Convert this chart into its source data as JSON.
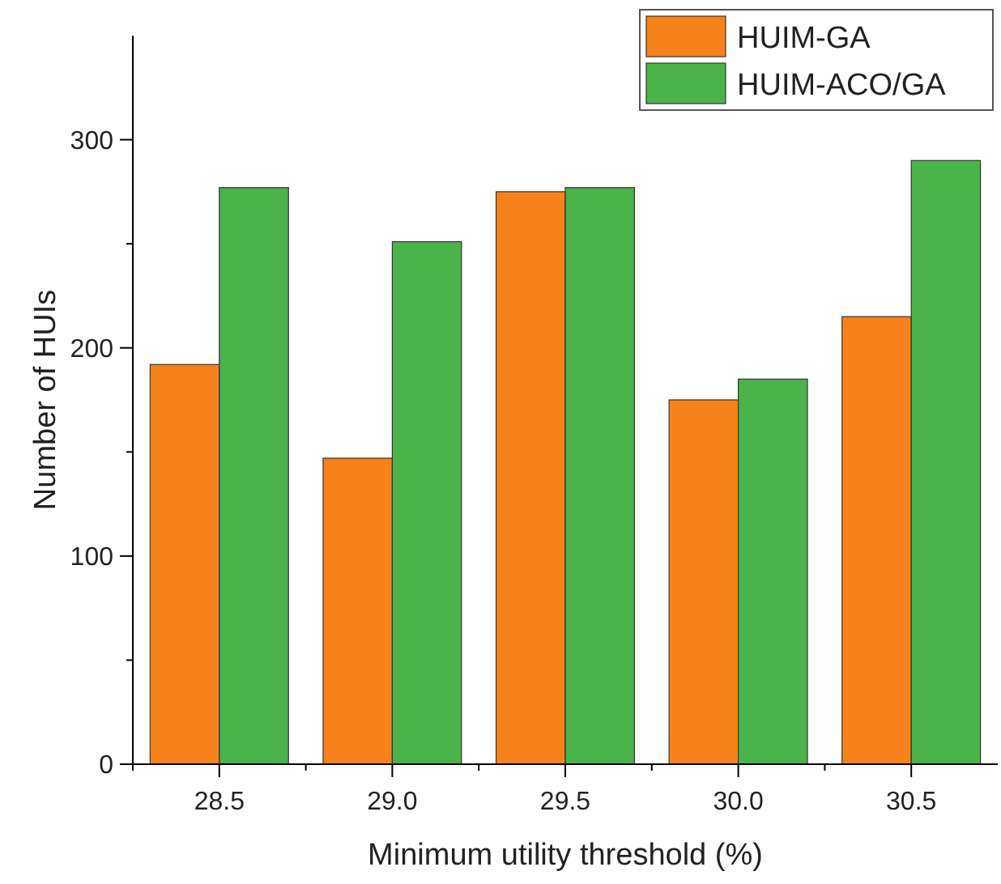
{
  "chart_data": {
    "type": "bar",
    "xlabel": "Minimum utility threshold (%)",
    "ylabel": "Number of HUIs",
    "categories": [
      "28.5",
      "29.0",
      "29.5",
      "30.0",
      "30.5"
    ],
    "series": [
      {
        "name": "HUIM-GA",
        "color": "#f7821b",
        "values": [
          192,
          147,
          275,
          175,
          215
        ]
      },
      {
        "name": "HUIM-ACO/GA",
        "color": "#4ab34a",
        "values": [
          277,
          251,
          277,
          185,
          290
        ]
      }
    ],
    "ylim": [
      0,
      350
    ],
    "yticks": [
      0,
      {
        "value": 50,
        "label": null
      },
      100,
      {
        "value": 150,
        "label": null
      },
      200,
      {
        "value": 250,
        "label": null
      },
      300
    ],
    "legend": "top right",
    "grid": false
  }
}
